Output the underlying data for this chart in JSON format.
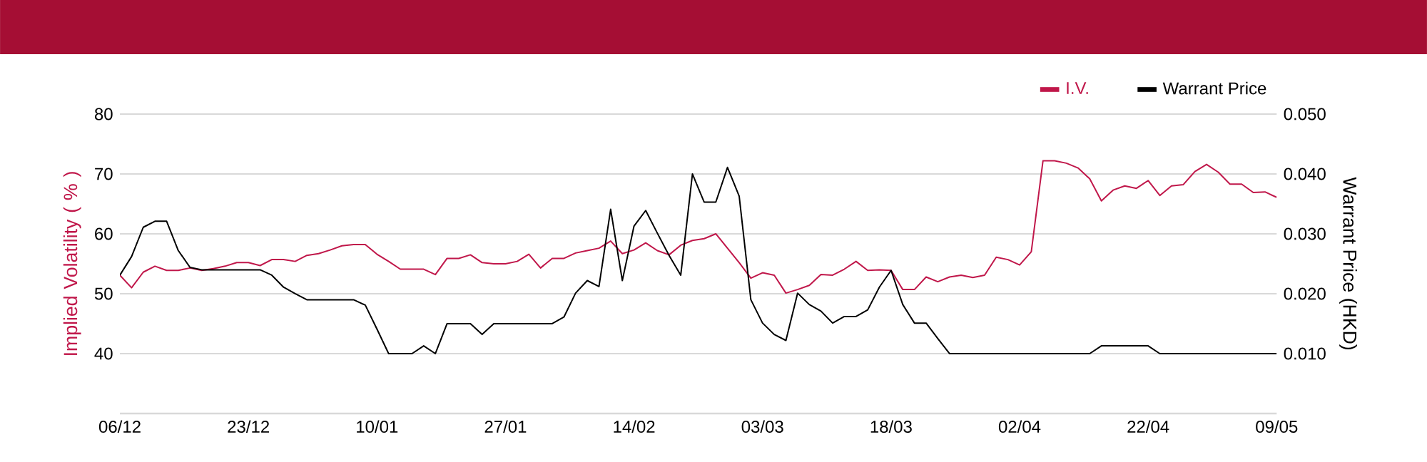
{
  "chart_data": {
    "type": "line",
    "categories": [
      "06/12",
      null,
      null,
      null,
      null,
      null,
      null,
      null,
      null,
      null,
      null,
      "23/12",
      null,
      null,
      null,
      null,
      null,
      null,
      null,
      null,
      null,
      null,
      "10/01",
      null,
      null,
      null,
      null,
      null,
      null,
      null,
      null,
      null,
      null,
      "27/01",
      null,
      null,
      null,
      null,
      null,
      null,
      null,
      null,
      null,
      null,
      "14/02",
      null,
      null,
      null,
      null,
      null,
      null,
      null,
      null,
      null,
      null,
      "03/03",
      null,
      null,
      null,
      null,
      null,
      null,
      null,
      null,
      null,
      null,
      "18/03",
      null,
      null,
      null,
      null,
      null,
      null,
      null,
      null,
      null,
      null,
      "02/04",
      null,
      null,
      null,
      null,
      null,
      null,
      null,
      null,
      null,
      null,
      "22/04",
      null,
      null,
      null,
      null,
      null,
      null,
      null,
      null,
      null,
      null,
      "09/05"
    ],
    "ylabel": "Implied Volatility ( % )",
    "y2label": "Warrant Price (HKD)",
    "ylim": [
      30,
      80
    ],
    "yticks": [
      40,
      50,
      60,
      70,
      80
    ],
    "y2lim": [
      0,
      0.05
    ],
    "y2ticks": [
      {
        "value": 0.01,
        "label": "0.010"
      },
      {
        "value": 0.02,
        "label": "0.020"
      },
      {
        "value": 0.03,
        "label": "0.030"
      },
      {
        "value": 0.04,
        "label": "0.040"
      },
      {
        "value": 0.05,
        "label": "0.050"
      }
    ],
    "grid": "y",
    "legend": "top right",
    "series": [
      {
        "name": "I.V.",
        "color": "#c0174a",
        "values": [
          53.1,
          51.0,
          53.6,
          54.6,
          53.9,
          53.9,
          54.3,
          53.9,
          54.2,
          54.6,
          55.2,
          55.2,
          54.7,
          55.7,
          55.7,
          55.4,
          56.4,
          56.7,
          57.3,
          58.0,
          58.2,
          58.2,
          56.6,
          55.4,
          54.1,
          54.1,
          54.1,
          53.2,
          55.9,
          55.9,
          56.5,
          55.2,
          55.0,
          55.0,
          55.4,
          56.6,
          54.3,
          55.9,
          55.9,
          56.8,
          57.2,
          57.6,
          58.8,
          56.7,
          57.3,
          58.5,
          57.2,
          56.5,
          58.1,
          58.9,
          59.2,
          60.0,
          57.6,
          55.2,
          52.6,
          53.5,
          53.1,
          50.1,
          50.7,
          51.4,
          53.2,
          53.1,
          54.1,
          55.4,
          53.9,
          54.0,
          53.9,
          50.7,
          50.7,
          52.8,
          52.0,
          52.8,
          53.1,
          52.7,
          53.1,
          56.1,
          55.7,
          54.8,
          57.0,
          72.2,
          72.2,
          71.8,
          71.0,
          69.2,
          65.5,
          67.3,
          68.0,
          67.6,
          68.9,
          66.4,
          68.0,
          68.2,
          70.4,
          71.6,
          70.3,
          68.3,
          68.3,
          66.9,
          67.0,
          66.1
        ]
      },
      {
        "name": "Warrant Price",
        "color": "#000000",
        "axis": "y2",
        "values": [
          0.0231,
          0.0262,
          0.0311,
          0.0321,
          0.0321,
          0.0272,
          0.0244,
          0.024,
          0.024,
          0.024,
          0.024,
          0.024,
          0.024,
          0.0231,
          0.0211,
          0.02,
          0.019,
          0.019,
          0.019,
          0.019,
          0.019,
          0.0181,
          0.0141,
          0.01,
          0.01,
          0.01,
          0.0113,
          0.01,
          0.015,
          0.015,
          0.015,
          0.0132,
          0.015,
          0.015,
          0.015,
          0.015,
          0.015,
          0.015,
          0.0161,
          0.0201,
          0.0222,
          0.0212,
          0.0341,
          0.0222,
          0.0313,
          0.0339,
          0.0301,
          0.0264,
          0.0231,
          0.04,
          0.0353,
          0.0353,
          0.0411,
          0.0363,
          0.019,
          0.0151,
          0.0132,
          0.0122,
          0.0201,
          0.0182,
          0.0171,
          0.0151,
          0.0162,
          0.0162,
          0.0173,
          0.0211,
          0.0239,
          0.0182,
          0.0151,
          0.0151,
          0.0125,
          0.01,
          0.01,
          0.01,
          0.01,
          0.01,
          0.01,
          0.01,
          0.01,
          0.01,
          0.01,
          0.01,
          0.01,
          0.01,
          0.0113,
          0.0113,
          0.0113,
          0.0113,
          0.0113,
          0.01,
          0.01,
          0.01,
          0.01,
          0.01,
          0.01,
          0.01,
          0.01,
          0.01,
          0.01,
          0.01
        ]
      }
    ]
  }
}
